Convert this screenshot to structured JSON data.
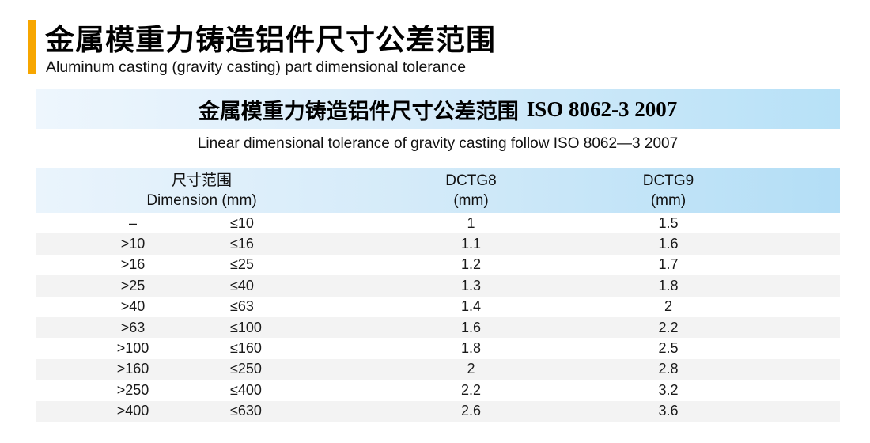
{
  "header": {
    "title_cn": "金属模重力铸造铝件尺寸公差范围",
    "subtitle_en": "Aluminum casting (gravity casting) part dimensional tolerance"
  },
  "banner": {
    "title_cn": "金属模重力铸造铝件尺寸公差范围",
    "title_iso": "ISO 8062-3 2007"
  },
  "caption_en": "Linear dimensional tolerance of gravity casting follow ISO 8062—3 2007",
  "table": {
    "headers": {
      "dimension_cn": "尺寸范围",
      "dimension_en": "Dimension (mm)",
      "dctg8_label": "DCTG8",
      "dctg8_unit": "(mm)",
      "dctg9_label": "DCTG9",
      "dctg9_unit": "(mm)"
    },
    "rows": [
      {
        "min": "–",
        "max": "≤10",
        "dctg8": "1",
        "dctg9": "1.5"
      },
      {
        "min": ">10",
        "max": "≤16",
        "dctg8": "1.1",
        "dctg9": "1.6"
      },
      {
        "min": ">16",
        "max": "≤25",
        "dctg8": "1.2",
        "dctg9": "1.7"
      },
      {
        "min": ">25",
        "max": "≤40",
        "dctg8": "1.3",
        "dctg9": "1.8"
      },
      {
        "min": ">40",
        "max": "≤63",
        "dctg8": "1.4",
        "dctg9": "2"
      },
      {
        "min": ">63",
        "max": "≤100",
        "dctg8": "1.6",
        "dctg9": "2.2"
      },
      {
        "min": ">100",
        "max": "≤160",
        "dctg8": "1.8",
        "dctg9": "2.5"
      },
      {
        "min": ">160",
        "max": "≤250",
        "dctg8": "2",
        "dctg9": "2.8"
      },
      {
        "min": ">250",
        "max": "≤400",
        "dctg8": "2.2",
        "dctg9": "3.2"
      },
      {
        "min": ">400",
        "max": "≤630",
        "dctg8": "2.6",
        "dctg9": "3.6"
      }
    ]
  },
  "colors": {
    "accent_orange": "#F7A600",
    "banner_blue_left": "#EEF6FD",
    "banner_blue_right": "#B7E1F7",
    "header_blue_left": "#EAF4FC",
    "header_blue_right": "#B3DEF6",
    "row_alt_gray": "#F3F3F3"
  }
}
